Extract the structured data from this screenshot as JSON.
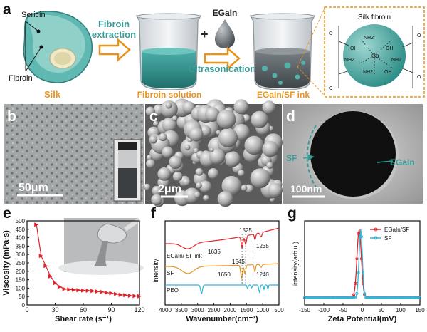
{
  "panel_a": {
    "label": "a",
    "sericin": "Sericin",
    "fibroin": "Fibroin",
    "silk": "Silk",
    "step1": "Fibroin",
    "step1b": "extraction",
    "fibroin_solution": "Fibroin solution",
    "plus": "+",
    "egain": "EGaIn",
    "ultrasonication": "Ultrasonication",
    "ink": "EGaIn/SF ink",
    "inset_title": "Silk fibroin",
    "ga": "Ga",
    "nh2": "NH2",
    "oh": "OH",
    "o": "O",
    "c": "C"
  },
  "panel_b": {
    "label": "b",
    "scale": "50μm"
  },
  "panel_c": {
    "label": "c",
    "scale": "2μm"
  },
  "panel_d": {
    "label": "d",
    "scale": "100nm",
    "sf": "SF",
    "egain": "EGaIn"
  },
  "panel_e": {
    "label": "e"
  },
  "panel_f": {
    "label": "f",
    "ann": [
      "1525",
      "1635",
      "1235",
      "1545",
      "1650",
      "1240"
    ]
  },
  "panel_g": {
    "label": "g"
  },
  "chart_data": [
    {
      "type": "scatter",
      "panel": "e",
      "xlabel": "Shear rate (s⁻¹)",
      "ylabel": "Viscosity (mPa·s)",
      "xlim": [
        0,
        120
      ],
      "ylim": [
        0,
        500
      ],
      "xticks": [
        0,
        30,
        60,
        90,
        120
      ],
      "yticks": [
        0,
        50,
        100,
        150,
        200,
        250,
        300,
        350,
        400,
        450,
        500
      ],
      "x": [
        10,
        15,
        20,
        25,
        30,
        35,
        40,
        45,
        50,
        55,
        60,
        65,
        70,
        75,
        80,
        85,
        90,
        95,
        100,
        105,
        110,
        115,
        120
      ],
      "y": [
        478,
        292,
        232,
        170,
        130,
        108,
        95,
        92,
        90,
        88,
        86,
        85,
        83,
        80,
        78,
        73,
        70,
        65,
        60,
        58,
        55,
        53,
        52
      ],
      "color": "#e0252a"
    },
    {
      "type": "line",
      "panel": "f",
      "xlabel": "Wavenumber(cm⁻¹)",
      "ylabel": "intensity",
      "xlim": [
        4000,
        500
      ],
      "xticks": [
        4000,
        3500,
        3000,
        2500,
        2000,
        1500,
        1000,
        500
      ],
      "series": [
        {
          "name": "EGaIn/ SF ink",
          "color": "#e0252a"
        },
        {
          "name": "SF",
          "color": "#e8941c"
        },
        {
          "name": "PEO",
          "color": "#2fb5d6"
        }
      ]
    },
    {
      "type": "line",
      "panel": "g",
      "xlabel": "Zeta Potential(mV)",
      "ylabel": "intensity(arb.u.)",
      "xlim": [
        -150,
        150
      ],
      "xticks": [
        -150,
        -100,
        -50,
        0,
        50,
        100,
        150
      ],
      "legend": "top-right",
      "series": [
        {
          "name": "EGaIn/SF",
          "color": "#e0252a",
          "center": -8,
          "width": 8
        },
        {
          "name": "SF",
          "color": "#2fb5d6",
          "center": -4,
          "width": 6
        }
      ]
    }
  ]
}
